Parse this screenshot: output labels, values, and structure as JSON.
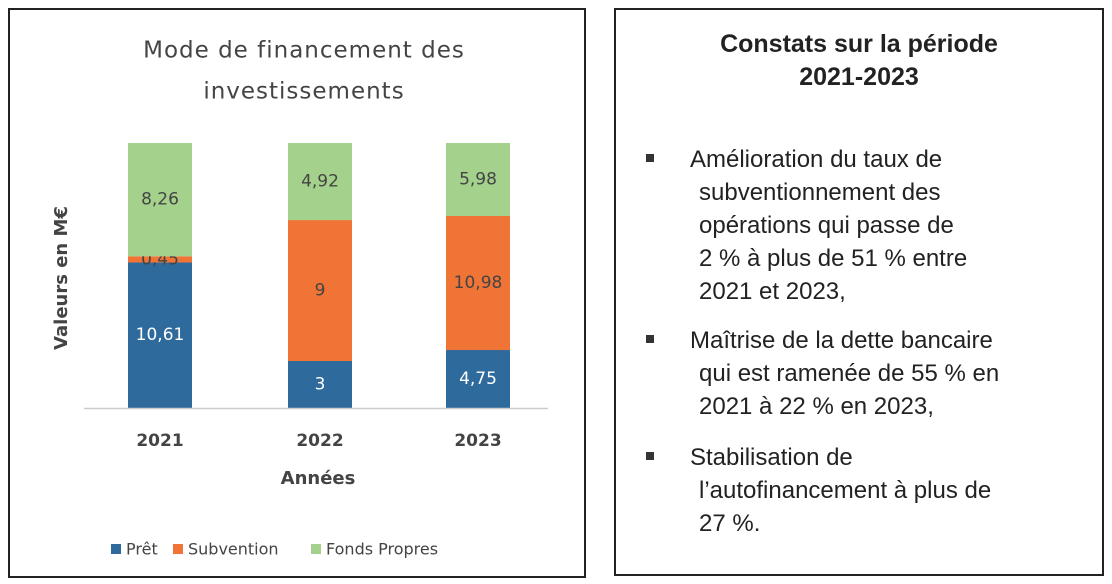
{
  "chart_data": {
    "type": "bar",
    "stack": "percent",
    "title": [
      "Mode de financement des",
      "investissements"
    ],
    "y_label": "Valeurs en M€",
    "x_label": "Années",
    "categories": [
      "2021",
      "2022",
      "2023"
    ],
    "series": [
      {
        "name": "Prêt",
        "color": "#2e6a9c",
        "values": [
          10.61,
          3,
          4.75
        ],
        "value_labels": [
          "10,61",
          "3",
          "4,75"
        ]
      },
      {
        "name": "Subvention",
        "color": "#ef7435",
        "values": [
          0.45,
          9,
          10.98
        ],
        "value_labels": [
          "0,45",
          "9",
          "10,98"
        ]
      },
      {
        "name": "Fonds Propres",
        "color": "#a4d18c",
        "values": [
          8.26,
          4.92,
          5.98
        ],
        "value_labels": [
          "8,26",
          "4,92",
          "5,98"
        ]
      }
    ],
    "legend": "bottom"
  },
  "panel": {
    "title": [
      "Constats sur la période",
      "2021-2023"
    ],
    "items": [
      [
        "Amélioration du taux de",
        "subventionnement des",
        "opérations qui passe de",
        "2 % à plus de 51 % entre",
        "2021 et 2023,"
      ],
      [
        "Maîtrise de la dette bancaire",
        "qui est ramenée de 55 % en",
        "2021 à 22 % en 2023,"
      ],
      [
        "Stabilisation de",
        "l’autofinancement à plus de",
        "27 %."
      ]
    ]
  }
}
